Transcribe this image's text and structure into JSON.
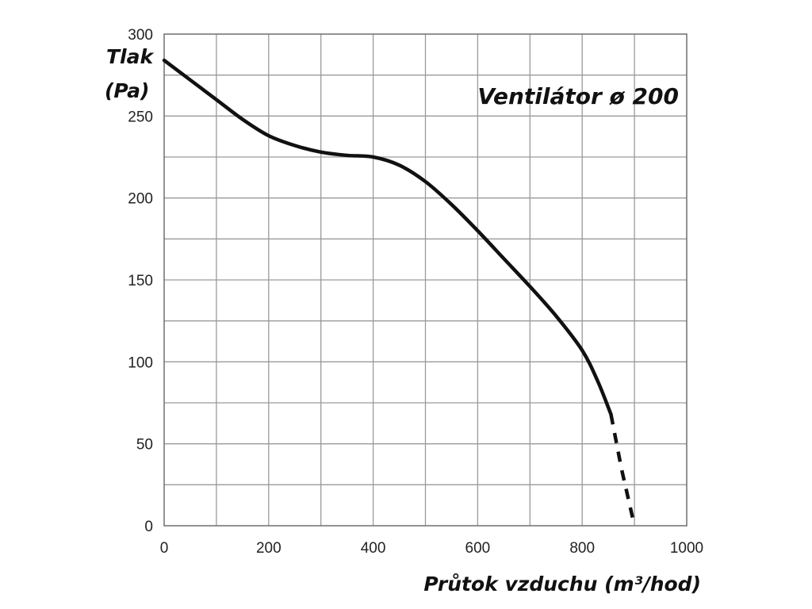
{
  "chart_data": {
    "type": "line",
    "title": "Ventilátor ø 200",
    "ylabel_line1": "Tlak",
    "ylabel_line2": "(Pa)",
    "xlabel": "Průtok vzduchu (m³/hod)",
    "xlim": [
      0,
      1000
    ],
    "ylim": [
      0,
      300
    ],
    "x_ticks": [
      0,
      200,
      400,
      600,
      800,
      1000
    ],
    "y_ticks": [
      0,
      50,
      100,
      150,
      200,
      250,
      300
    ],
    "x_grid_step": 100,
    "y_grid_step": 25,
    "grid": true,
    "series": [
      {
        "style": "solid",
        "x": [
          0,
          50,
          100,
          150,
          200,
          250,
          300,
          350,
          400,
          450,
          500,
          550,
          600,
          650,
          700,
          750,
          800,
          830,
          855
        ],
        "y": [
          284,
          272,
          260,
          248,
          238,
          232,
          228,
          226,
          225,
          220,
          210,
          196,
          180,
          163,
          146,
          128,
          107,
          88,
          68
        ]
      },
      {
        "style": "dashed",
        "x": [
          855,
          875,
          900
        ],
        "y": [
          68,
          35,
          0
        ]
      }
    ]
  }
}
